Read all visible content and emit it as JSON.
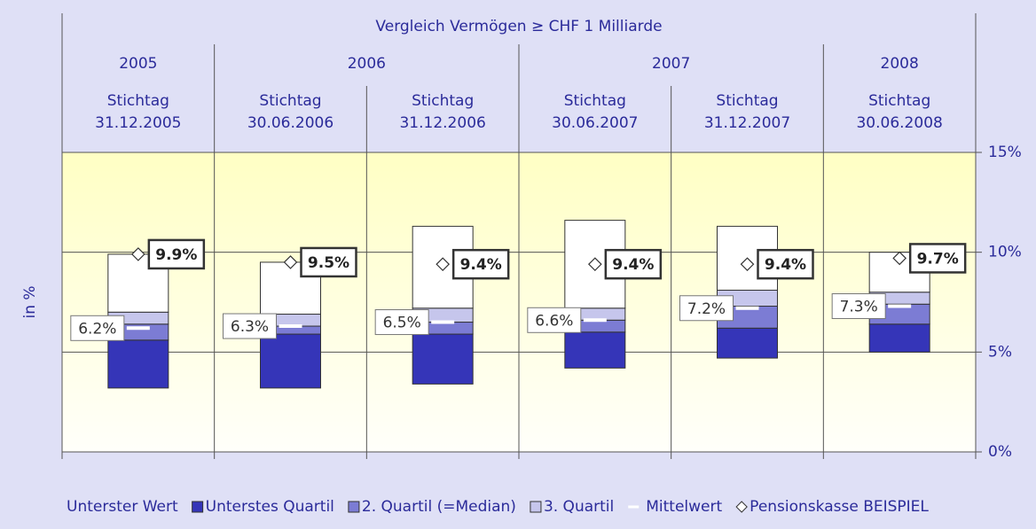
{
  "chart_data": {
    "type": "floating_box",
    "title": "Vergleich Vermögen ≥ CHF 1 Milliarde",
    "category_prefix": "Stichtag",
    "years": [
      "2005",
      "2006",
      "2006",
      "2007",
      "2007",
      "2008"
    ],
    "categories": [
      "31.12.2005",
      "30.06.2006",
      "31.12.2006",
      "30.06.2007",
      "31.12.2007",
      "30.06.2008"
    ],
    "y_label": "in %",
    "ylim": [
      0,
      15
    ],
    "yticks": [
      {
        "value": 0,
        "label": "0%"
      },
      {
        "value": 5,
        "label": "5%"
      },
      {
        "value": 10,
        "label": "10%"
      },
      {
        "value": 15,
        "label": "15%"
      }
    ],
    "grid": true,
    "series": [
      {
        "name": "Unterster Wert",
        "color": "none",
        "values": [
          3.2,
          3.2,
          3.4,
          4.2,
          4.7,
          5.0
        ]
      },
      {
        "name": "Unterstes Quartil",
        "color": "#3535b8",
        "values": [
          2.4,
          2.7,
          2.5,
          1.8,
          1.5,
          1.4
        ]
      },
      {
        "name": "2. Quartil (=Median)",
        "color": "#7c7cd4",
        "values": [
          0.8,
          0.4,
          0.6,
          0.6,
          1.1,
          1.0
        ]
      },
      {
        "name": "3. Quartil",
        "color": "#c6c6ec",
        "values": [
          0.6,
          0.6,
          0.7,
          0.6,
          0.8,
          0.6
        ]
      },
      {
        "color": "#ffffff",
        "values": [
          2.9,
          2.6,
          4.1,
          4.4,
          3.2,
          2.0
        ]
      }
    ],
    "mean": {
      "name": "Mittelwert",
      "color": "#ffffff",
      "values": [
        6.2,
        6.3,
        6.5,
        6.6,
        7.2,
        7.3
      ],
      "value_labels": [
        "6.2%",
        "6.3%",
        "6.5%",
        "6.6%",
        "7.2%",
        "7.3%"
      ]
    },
    "benchmark": {
      "name": "Pensionskasse BEISPIEL",
      "values": [
        9.9,
        9.5,
        9.4,
        9.4,
        9.4,
        9.7
      ],
      "value_labels": [
        "9.9%",
        "9.5%",
        "9.4%",
        "9.4%",
        "9.4%",
        "9.7%"
      ]
    }
  }
}
